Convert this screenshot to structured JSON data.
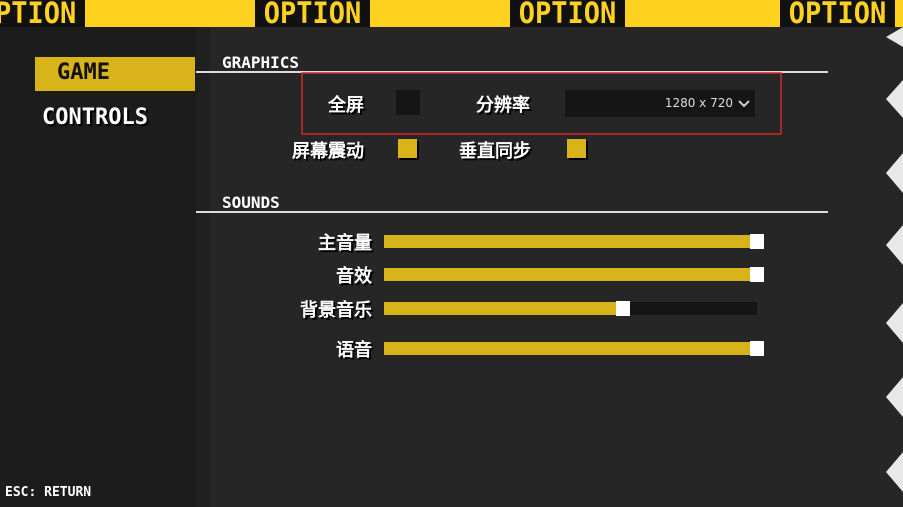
{
  "banner": {
    "text": "OPTION"
  },
  "sidebar": {
    "items": [
      {
        "label": "GAME",
        "selected": true
      },
      {
        "label": "CONTROLS",
        "selected": false
      }
    ],
    "footer": "ESC: RETURN"
  },
  "graphics": {
    "title": "GRAPHICS",
    "fullscreen": {
      "label": "全屏",
      "checked": false
    },
    "resolution": {
      "label": "分辨率",
      "value": "1280 x 720"
    },
    "screen_shake": {
      "label": "屏幕震动",
      "checked": true
    },
    "vsync": {
      "label": "垂直同步",
      "checked": true
    }
  },
  "sounds": {
    "title": "SOUNDS",
    "sliders": [
      {
        "label": "主音量",
        "value": 100
      },
      {
        "label": "音效",
        "value": 100
      },
      {
        "label": "背景音乐",
        "value": 64
      },
      {
        "label": "语音",
        "value": 100
      }
    ]
  }
}
